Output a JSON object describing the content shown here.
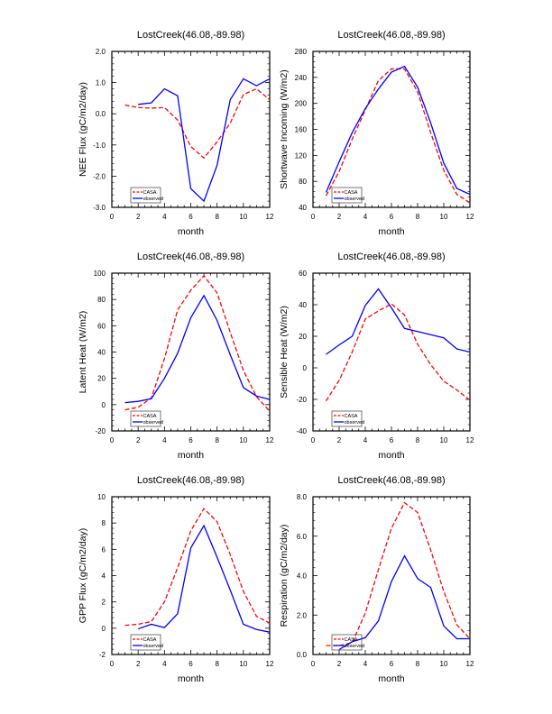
{
  "chart_data": [
    {
      "type": "line",
      "title": "LostCreek(46.08,-89.98)",
      "xlabel": "month",
      "ylabel": "NEE Flux (gC/m2/day)",
      "xlim": [
        0,
        12
      ],
      "ylim": [
        -3.0,
        2.0
      ],
      "xticks": [
        "0",
        "2",
        "4",
        "6",
        "8",
        "10",
        "12"
      ],
      "yticks": [
        "-3.0",
        "-2.0",
        "-1.0",
        "0.0",
        "1.0",
        "2.0"
      ],
      "legend": [
        "CASA",
        "observed"
      ],
      "legend_placement": "bottom-left",
      "series": [
        {
          "name": "CASA",
          "color": "#ff0000",
          "x": [
            1,
            2,
            3,
            4,
            5,
            6,
            7,
            8,
            9,
            10,
            11,
            12
          ],
          "values": [
            0.28,
            0.2,
            0.18,
            0.2,
            -0.2,
            -1.05,
            -1.42,
            -0.9,
            -0.3,
            0.62,
            0.8,
            0.45
          ]
        },
        {
          "name": "observed",
          "color": "#0000ff",
          "x": [
            2,
            3,
            4,
            5,
            6,
            7,
            8,
            9,
            10,
            11,
            12
          ],
          "values": [
            0.3,
            0.35,
            0.8,
            0.58,
            -2.4,
            -2.8,
            -1.65,
            0.45,
            1.12,
            0.9,
            1.12
          ]
        }
      ]
    },
    {
      "type": "line",
      "title": "LostCreek(46.08,-89.98)",
      "xlabel": "month",
      "ylabel": "Shortwave Incoming (W/m2)",
      "xlim": [
        0,
        12
      ],
      "ylim": [
        40,
        280
      ],
      "xticks": [
        "0",
        "2",
        "4",
        "6",
        "8",
        "10",
        "12"
      ],
      "yticks": [
        "40",
        "80",
        "120",
        "160",
        "200",
        "240",
        "280"
      ],
      "legend": [
        "CASA",
        "observed"
      ],
      "legend_placement": "bottom-left",
      "series": [
        {
          "name": "CASA",
          "color": "#ff0000",
          "x": [
            1,
            2,
            3,
            4,
            5,
            6,
            7,
            8,
            9,
            10,
            11,
            12
          ],
          "values": [
            58,
            95,
            145,
            190,
            235,
            253,
            253,
            218,
            155,
            97,
            60,
            47
          ]
        },
        {
          "name": "observed",
          "color": "#0000ff",
          "x": [
            1,
            2,
            3,
            4,
            5,
            6,
            7,
            8,
            9,
            10,
            11,
            12
          ],
          "values": [
            63,
            110,
            155,
            192,
            222,
            248,
            257,
            225,
            170,
            108,
            69,
            60
          ]
        }
      ]
    },
    {
      "type": "line",
      "title": "LostCreek(46.08,-89.98)",
      "xlabel": "month",
      "ylabel": "Latent Heat (W/m2)",
      "xlim": [
        0,
        12
      ],
      "ylim": [
        -20,
        100
      ],
      "xticks": [
        "0",
        "2",
        "4",
        "6",
        "8",
        "10",
        "12"
      ],
      "yticks": [
        "-20",
        "0",
        "20",
        "40",
        "60",
        "80",
        "100"
      ],
      "legend": [
        "CASA",
        "observed"
      ],
      "legend_placement": "bottom-left",
      "series": [
        {
          "name": "CASA",
          "color": "#ff0000",
          "x": [
            1,
            2,
            3,
            4,
            5,
            6,
            7,
            8,
            9,
            10,
            11,
            12
          ],
          "values": [
            -4,
            -2,
            5,
            35,
            72,
            87,
            98,
            85,
            55,
            26,
            6,
            -5
          ]
        },
        {
          "name": "observed",
          "color": "#0000ff",
          "x": [
            1,
            2,
            3,
            4,
            5,
            6,
            7,
            8,
            9,
            10,
            11,
            12
          ],
          "values": [
            1.5,
            2.5,
            4.5,
            20,
            39,
            66,
            83,
            64,
            38,
            13,
            6.5,
            4
          ]
        }
      ]
    },
    {
      "type": "line",
      "title": "LostCreek(46.08,-89.98)",
      "xlabel": "month",
      "ylabel": "Sensible Heat (W/m2)",
      "xlim": [
        0,
        12
      ],
      "ylim": [
        -40,
        60
      ],
      "xticks": [
        "0",
        "2",
        "4",
        "6",
        "8",
        "10",
        "12"
      ],
      "yticks": [
        "-40",
        "-20",
        "0",
        "20",
        "40",
        "60"
      ],
      "legend": [
        "CASA",
        "observed"
      ],
      "legend_placement": "bottom-left",
      "series": [
        {
          "name": "CASA",
          "color": "#ff0000",
          "x": [
            1,
            2,
            3,
            4,
            5,
            6,
            7,
            8,
            9,
            10,
            11,
            12
          ],
          "values": [
            -21,
            -8,
            10,
            31,
            36,
            40.5,
            33.5,
            15,
            2,
            -8.5,
            -14,
            -20.5
          ]
        },
        {
          "name": "observed",
          "color": "#0000ff",
          "x": [
            1,
            2,
            3,
            4,
            5,
            6,
            7,
            8,
            9,
            10,
            11,
            12
          ],
          "values": [
            8.5,
            14.5,
            20,
            39.5,
            50,
            38,
            25,
            23,
            21,
            19,
            12,
            10
          ]
        }
      ]
    },
    {
      "type": "line",
      "title": "LostCreek(46.08,-89.98)",
      "xlabel": "month",
      "ylabel": "GPP Flux (gC/m2/day)",
      "xlim": [
        0,
        12
      ],
      "ylim": [
        -2,
        10
      ],
      "xticks": [
        "0",
        "2",
        "4",
        "6",
        "8",
        "10",
        "12"
      ],
      "yticks": [
        "-2",
        "0",
        "2",
        "4",
        "6",
        "8",
        "10"
      ],
      "legend": [
        "CASA",
        "observed"
      ],
      "legend_placement": "bottom-left",
      "series": [
        {
          "name": "CASA",
          "color": "#ff0000",
          "x": [
            1,
            2,
            3,
            4,
            5,
            6,
            7,
            8,
            9,
            10,
            11,
            12
          ],
          "values": [
            0.22,
            0.3,
            0.5,
            2.0,
            4.6,
            7.4,
            9.1,
            8.1,
            5.6,
            2.8,
            0.9,
            0.4
          ]
        },
        {
          "name": "observed",
          "color": "#0000ff",
          "x": [
            2,
            3,
            4,
            5,
            6,
            7,
            8,
            9,
            10,
            11,
            12
          ],
          "values": [
            -0.05,
            0.3,
            0.05,
            1.1,
            6.1,
            7.8,
            5.4,
            2.9,
            0.3,
            -0.1,
            -0.3
          ]
        }
      ]
    },
    {
      "type": "line",
      "title": "LostCreek(46.08,-89.98)",
      "xlabel": "month",
      "ylabel": "Respiration (gC/m2/day)",
      "xlim": [
        0,
        12
      ],
      "ylim": [
        0.0,
        8.0
      ],
      "xticks": [
        "0",
        "2",
        "4",
        "6",
        "8",
        "10",
        "12"
      ],
      "yticks": [
        "0.0",
        "2.0",
        "4.0",
        "6.0",
        "8.0"
      ],
      "legend": [
        "CASA",
        "observed"
      ],
      "legend_placement": "bottom-left",
      "series": [
        {
          "name": "CASA",
          "color": "#ff0000",
          "x": [
            1,
            2,
            3,
            4,
            5,
            6,
            7,
            8,
            9,
            10,
            11,
            12
          ],
          "values": [
            0.45,
            0.45,
            0.6,
            2.1,
            4.3,
            6.4,
            7.7,
            7.2,
            5.3,
            3.2,
            1.5,
            0.8
          ]
        },
        {
          "name": "observed",
          "color": "#0000ff",
          "x": [
            2,
            3,
            4,
            5,
            6,
            7,
            8,
            9,
            10,
            11,
            12
          ],
          "values": [
            0.25,
            0.65,
            0.85,
            1.7,
            3.7,
            5.0,
            3.85,
            3.4,
            1.45,
            0.8,
            0.8
          ]
        }
      ]
    }
  ]
}
